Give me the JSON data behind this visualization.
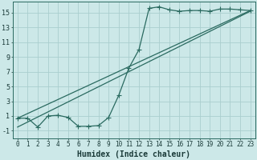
{
  "xlabel": "Humidex (Indice chaleur)",
  "bg_color": "#cce8e8",
  "grid_color": "#aacece",
  "line_color": "#2a6a60",
  "xlim": [
    -0.5,
    23.5
  ],
  "ylim": [
    -2.0,
    16.5
  ],
  "xticks": [
    0,
    1,
    2,
    3,
    4,
    5,
    6,
    7,
    8,
    9,
    10,
    11,
    12,
    13,
    14,
    15,
    16,
    17,
    18,
    19,
    20,
    21,
    22,
    23
  ],
  "yticks": [
    -1,
    1,
    3,
    5,
    7,
    9,
    11,
    13,
    15
  ],
  "line1_x": [
    0,
    1,
    2,
    3,
    4,
    5,
    6,
    7,
    8,
    9,
    10,
    11,
    12,
    13,
    14,
    15,
    16,
    17,
    18,
    19,
    20,
    21,
    22,
    23
  ],
  "line1_y": [
    0.7,
    0.7,
    -0.5,
    1.0,
    1.1,
    0.8,
    -0.4,
    -0.4,
    -0.3,
    0.8,
    3.8,
    7.5,
    10.0,
    15.6,
    15.8,
    15.4,
    15.2,
    15.3,
    15.3,
    15.2,
    15.5,
    15.5,
    15.4,
    15.3
  ],
  "line2_x": [
    0,
    23
  ],
  "line2_y": [
    0.7,
    15.3
  ],
  "line3_x": [
    0,
    23
  ],
  "line3_y": [
    -0.5,
    15.2
  ],
  "xlabel_fontsize": 7,
  "tick_fontsize": 5.5,
  "marker_size": 2.2
}
